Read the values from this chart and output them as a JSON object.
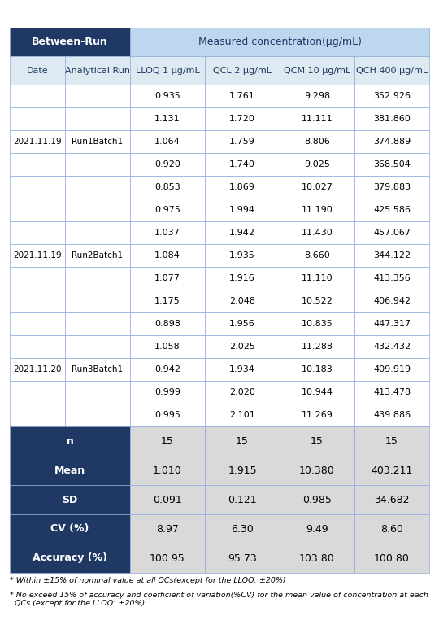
{
  "header_row1_left": "Between-Run",
  "header_row1_right": "Measured concentration(μg/mL)",
  "header_row2": [
    "Date",
    "Analytical Run",
    "LLOQ 1 μg/mL",
    "QCL 2 μg/mL",
    "QCM 10 μg/mL",
    "QCH 400 μg/mL"
  ],
  "data_rows": [
    [
      "",
      "",
      "0.935",
      "1.761",
      "9.298",
      "352.926"
    ],
    [
      "",
      "",
      "1.131",
      "1.720",
      "11.111",
      "381.860"
    ],
    [
      "2021.11.19",
      "Run1Batch1",
      "1.064",
      "1.759",
      "8.806",
      "374.889"
    ],
    [
      "",
      "",
      "0.920",
      "1.740",
      "9.025",
      "368.504"
    ],
    [
      "",
      "",
      "0.853",
      "1.869",
      "10.027",
      "379.883"
    ],
    [
      "",
      "",
      "0.975",
      "1.994",
      "11.190",
      "425.586"
    ],
    [
      "",
      "",
      "1.037",
      "1.942",
      "11.430",
      "457.067"
    ],
    [
      "2021.11.19",
      "Run2Batch1",
      "1.084",
      "1.935",
      "8.660",
      "344.122"
    ],
    [
      "",
      "",
      "1.077",
      "1.916",
      "11.110",
      "413.356"
    ],
    [
      "",
      "",
      "1.175",
      "2.048",
      "10.522",
      "406.942"
    ],
    [
      "",
      "",
      "0.898",
      "1.956",
      "10.835",
      "447.317"
    ],
    [
      "",
      "",
      "1.058",
      "2.025",
      "11.288",
      "432.432"
    ],
    [
      "2021.11.20",
      "Run3Batch1",
      "0.942",
      "1.934",
      "10.183",
      "409.919"
    ],
    [
      "",
      "",
      "0.999",
      "2.020",
      "10.944",
      "413.478"
    ],
    [
      "",
      "",
      "0.995",
      "2.101",
      "11.269",
      "439.886"
    ]
  ],
  "summary_rows": [
    [
      "n",
      "15",
      "15",
      "15",
      "15"
    ],
    [
      "Mean",
      "1.010",
      "1.915",
      "10.380",
      "403.211"
    ],
    [
      "SD",
      "0.091",
      "0.121",
      "0.985",
      "34.682"
    ],
    [
      "CV (%)",
      "8.97",
      "6.30",
      "9.49",
      "8.60"
    ],
    [
      "Accuracy (%)",
      "100.95",
      "95.73",
      "103.80",
      "100.80"
    ]
  ],
  "footnote1": "* Within ±15% of nominal value at all QCs(except for the LLOQ: ±20%)",
  "footnote2": "* No exceed 15% of accuracy and coefficient of variation(%CV) for the mean value of concentration at each\n  QCs (except for the LLOQ: ±20%)",
  "dark_blue": "#1F3864",
  "light_blue_header": "#BDD7EE",
  "light_blue_subheader": "#DEEAF1",
  "white": "#FFFFFF",
  "light_gray": "#D9D9D9",
  "border_color": "#8EAADB"
}
